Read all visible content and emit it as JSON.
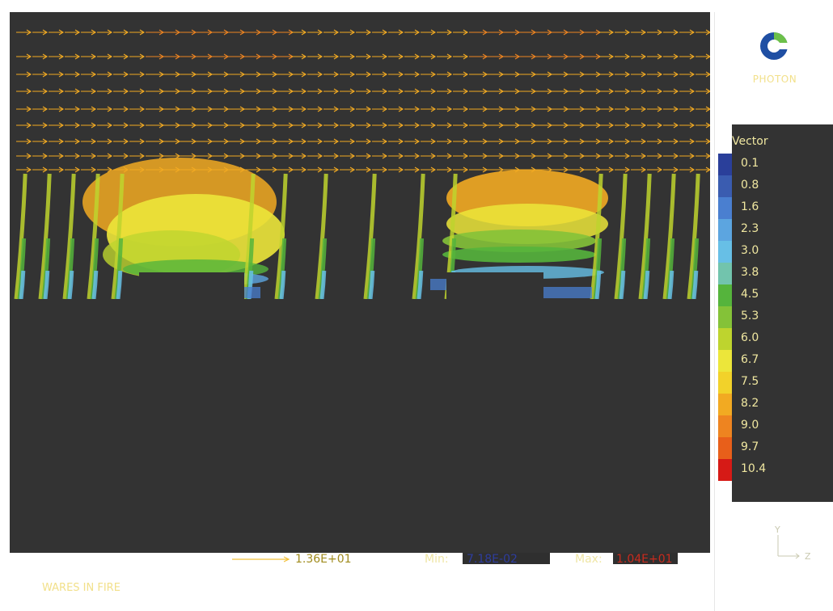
{
  "brand": "PHOTON",
  "logo_icon": "photon-logo-icon",
  "legend": {
    "title": "Vector",
    "entries": [
      {
        "label": "0.1",
        "color": "#2a3f9a"
      },
      {
        "label": "0.8",
        "color": "#3a5cb0"
      },
      {
        "label": "1.6",
        "color": "#4a7fd0"
      },
      {
        "label": "2.3",
        "color": "#5ca5e0"
      },
      {
        "label": "3.0",
        "color": "#67bfe6"
      },
      {
        "label": "3.8",
        "color": "#72c4ad"
      },
      {
        "label": "4.5",
        "color": "#55b43c"
      },
      {
        "label": "5.3",
        "color": "#84c238"
      },
      {
        "label": "6.0",
        "color": "#bed42e"
      },
      {
        "label": "6.7",
        "color": "#ece63a"
      },
      {
        "label": "7.5",
        "color": "#f2d22a"
      },
      {
        "label": "8.2",
        "color": "#f2aa22"
      },
      {
        "label": "9.0",
        "color": "#ee8420"
      },
      {
        "label": "9.7",
        "color": "#e85f1a"
      },
      {
        "label": "10.4",
        "color": "#d61a16"
      }
    ]
  },
  "scale": {
    "reference_value": "1.36E+01",
    "min_label": "Min:",
    "min_value": "7.18E-02",
    "max_label": "Max:",
    "max_value": "1.04E+01"
  },
  "axes": {
    "y": "Y",
    "z": "Z"
  },
  "footer_title": "WARES IN FIRE"
}
